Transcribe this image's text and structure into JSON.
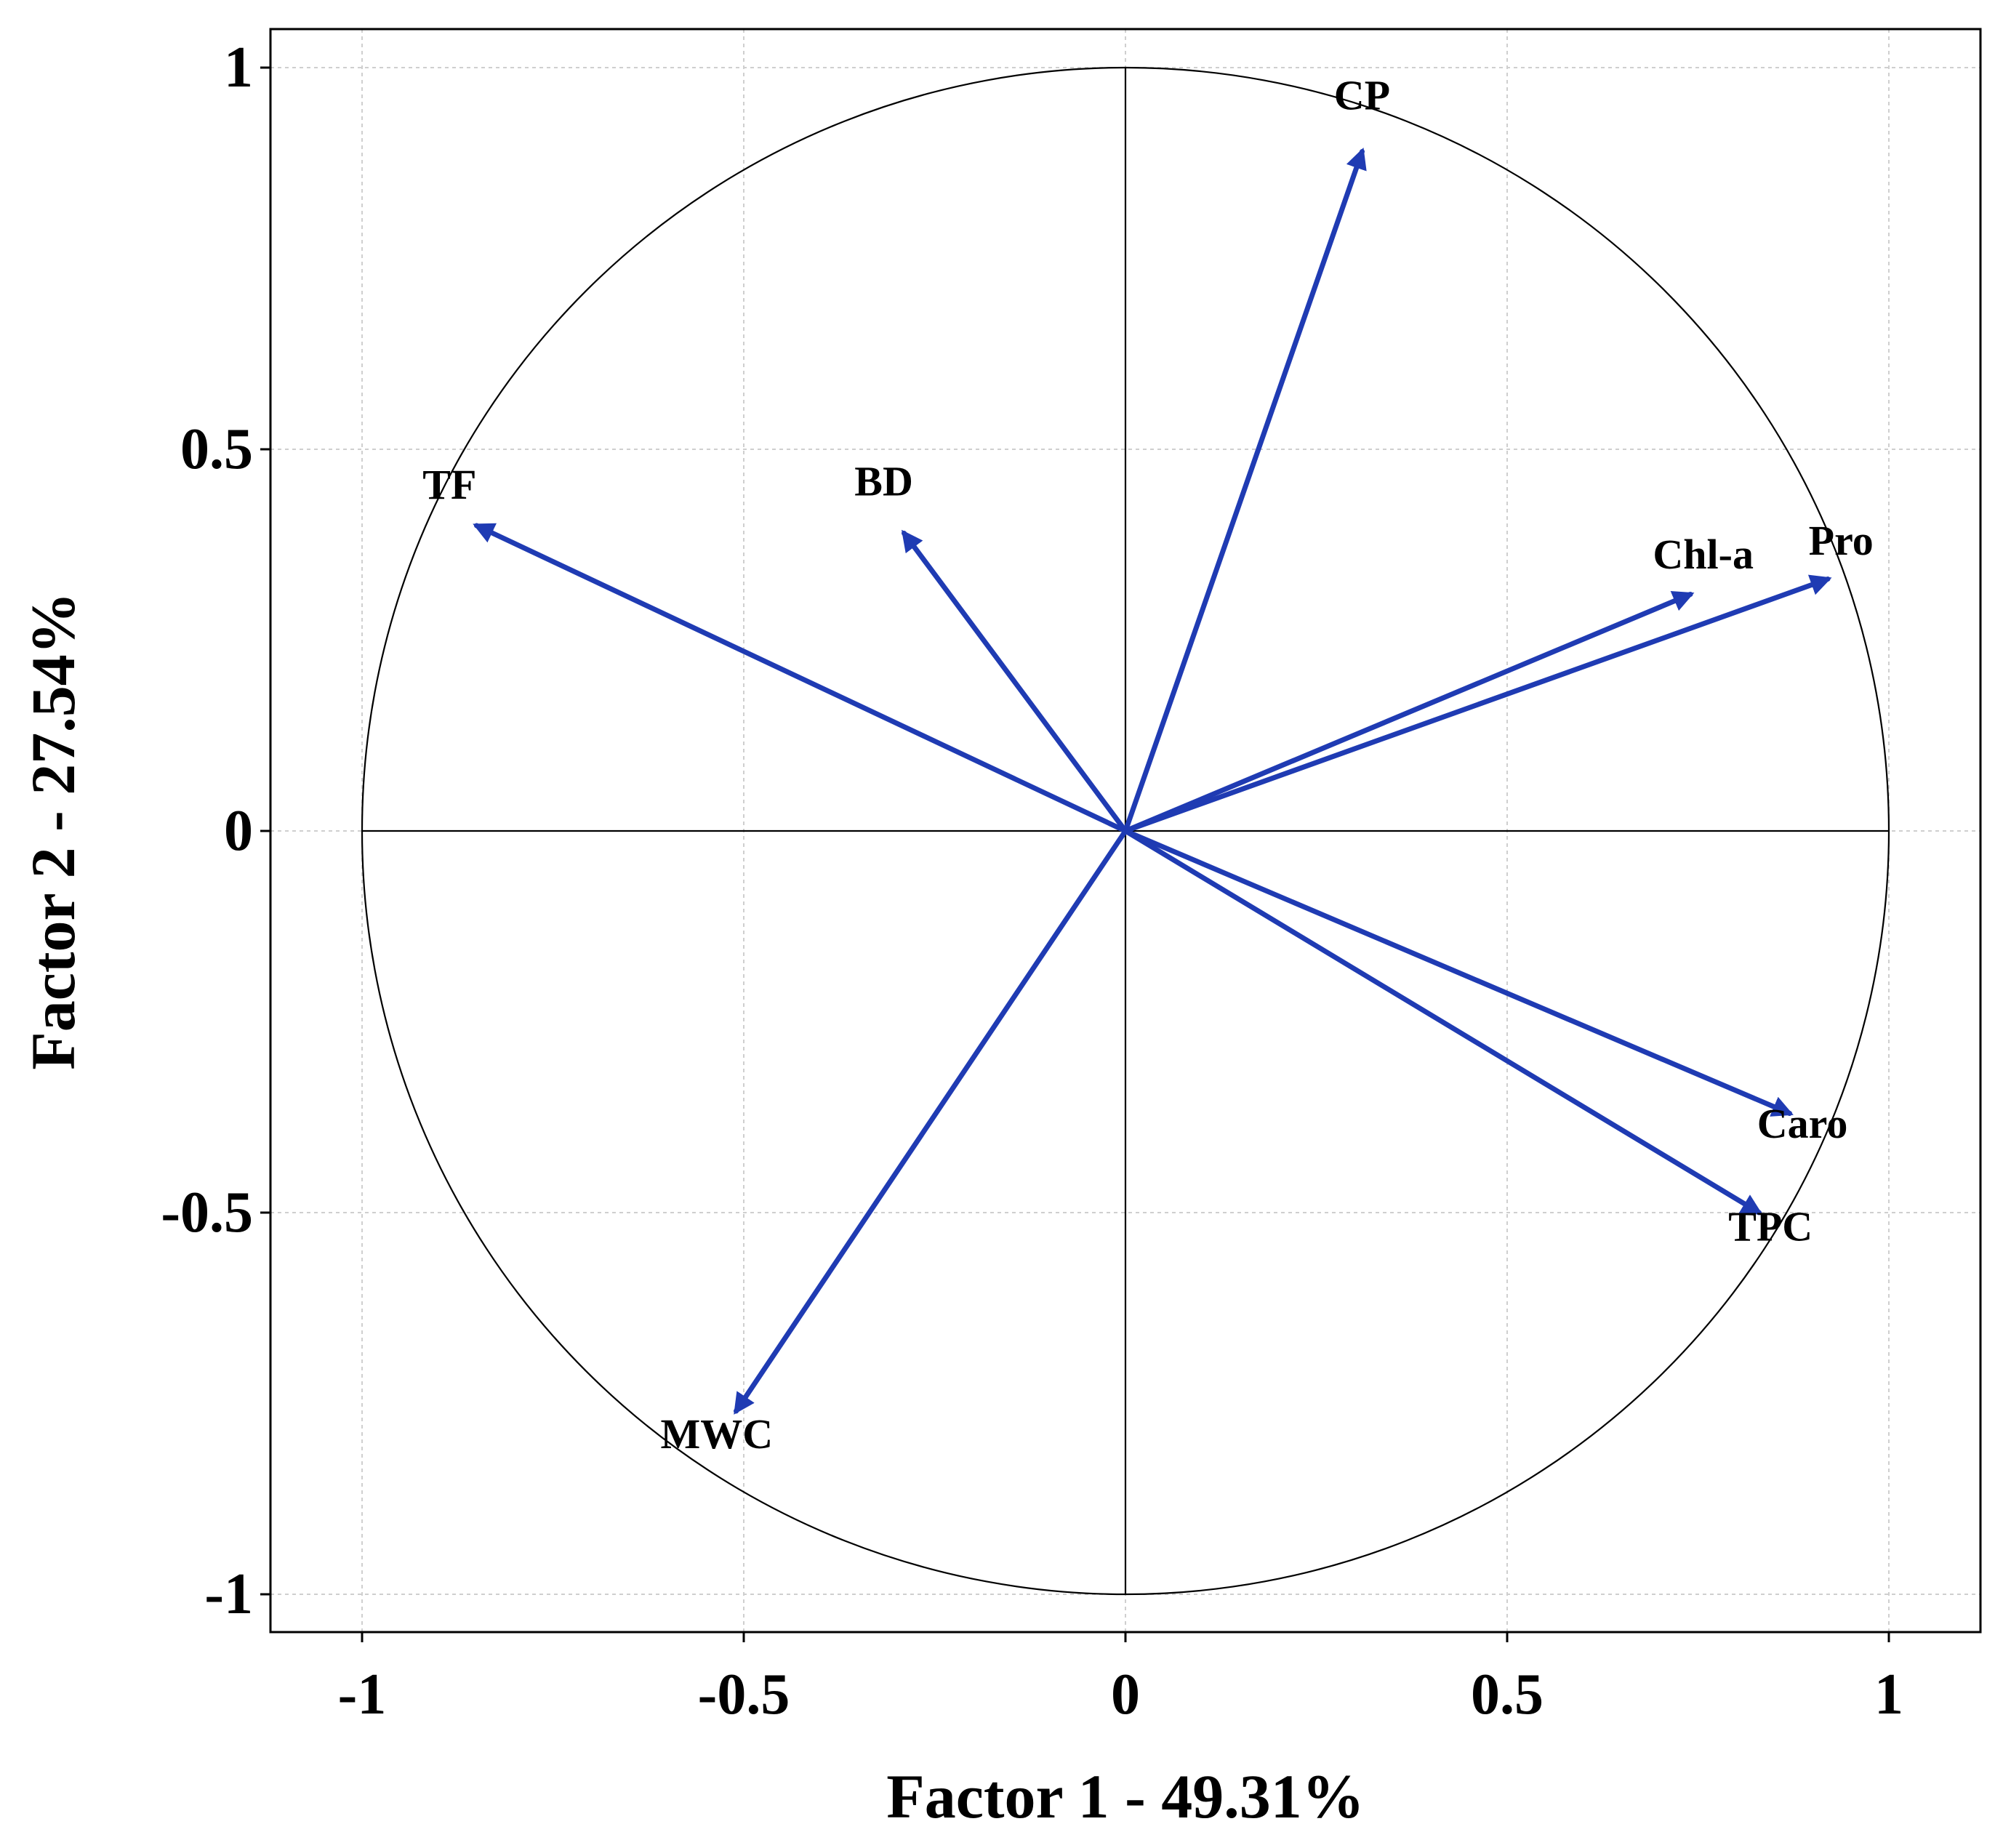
{
  "chart_data": {
    "type": "scatter",
    "subtype": "pca-correlation-circle",
    "xlabel": "Factor 1 - 49.31%",
    "ylabel": "Factor 2 - 27.54%",
    "xlim": [
      -1.12,
      1.12
    ],
    "ylim": [
      -1.12,
      1.12
    ],
    "xticks": [
      -1,
      -0.5,
      0,
      0.5,
      1
    ],
    "yticks": [
      -1,
      -0.5,
      0,
      0.5,
      1
    ],
    "xtick_labels": [
      "-1",
      "-0.5",
      "0",
      "0.5",
      "1"
    ],
    "ytick_labels": [
      "-1",
      "-0.5",
      "0",
      "0.5",
      "1"
    ],
    "grid": true,
    "unit_circle": true,
    "vector_color": "#1f3bb3",
    "variables": [
      {
        "name": "CP",
        "x": 0.31,
        "y": 0.89
      },
      {
        "name": "TF",
        "x": -0.85,
        "y": 0.4
      },
      {
        "name": "BD",
        "x": -0.29,
        "y": 0.39
      },
      {
        "name": "Chl-a",
        "x": 0.74,
        "y": 0.31
      },
      {
        "name": "Pro",
        "x": 0.92,
        "y": 0.33
      },
      {
        "name": "Caro",
        "x": 0.87,
        "y": -0.37
      },
      {
        "name": "TPC",
        "x": 0.83,
        "y": -0.5
      },
      {
        "name": "MWC",
        "x": -0.51,
        "y": -0.76
      }
    ]
  }
}
